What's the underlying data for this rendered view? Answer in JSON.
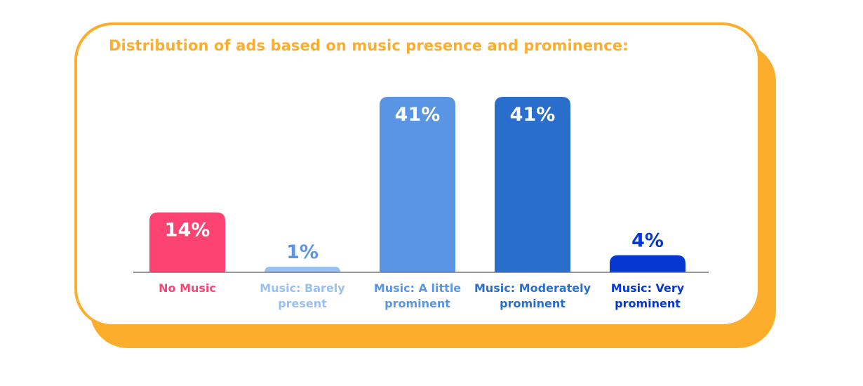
{
  "chart_data": {
    "type": "bar",
    "title": "Distribution of ads based on music presence and prominence:",
    "categories": [
      [
        "No Music"
      ],
      [
        "Music: Barely",
        "present"
      ],
      [
        "Music: A little",
        "prominent"
      ],
      [
        "Music: Moderately",
        "prominent"
      ],
      [
        "Music: Very",
        "prominent"
      ]
    ],
    "values": [
      14,
      1,
      41,
      41,
      4
    ],
    "value_labels": [
      "14%",
      "1%",
      "41%",
      "41%",
      "4%"
    ],
    "unit": "%",
    "ylim": [
      0,
      41
    ],
    "grid": false,
    "legend": "none"
  },
  "colors": {
    "title": "#fdad2c",
    "frame": "#fdad2c",
    "baseline": "#777777",
    "bars": [
      "#fd4372",
      "#9ac0ef",
      "#5a95e4",
      "#2a6ecc",
      "#0637d3"
    ],
    "value_labels_inside": "#ffffff",
    "value_labels_outside": [
      "#5a95e4",
      "#0637d3"
    ]
  }
}
